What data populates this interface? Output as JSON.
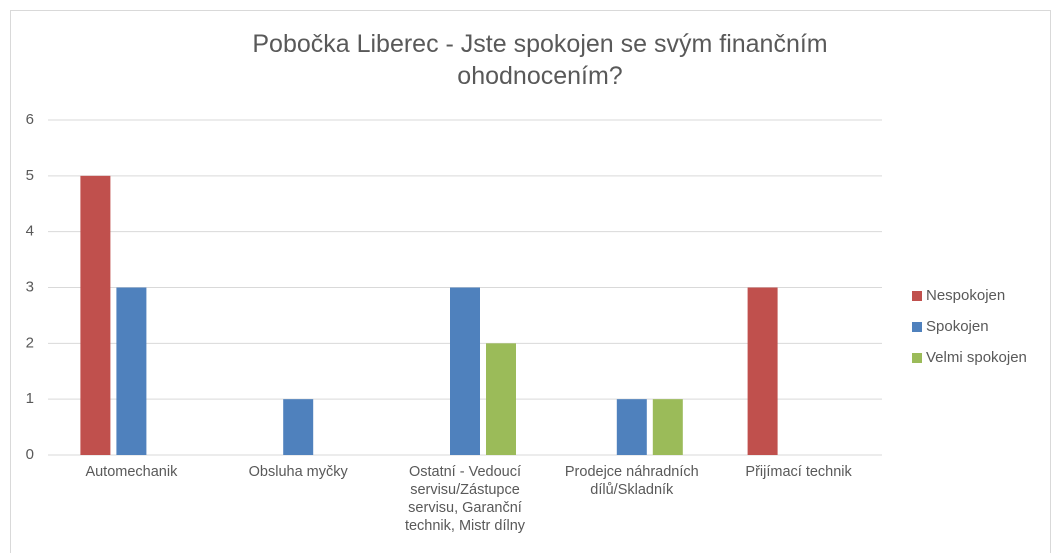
{
  "chart_data": {
    "type": "bar",
    "title": "Pobočka Liberec - Jste spokojen se svým finančním ohodnocením?",
    "categories": [
      "Automechanik",
      "Obsluha myčky",
      "Ostatní - Vedoucí servisu/Zástupce servisu, Garanční technik, Mistr dílny",
      "Prodejce náhradních dílů/Skladník",
      "Přijímací technik"
    ],
    "series": [
      {
        "name": "Nespokojen",
        "color": "#c0504d",
        "values": [
          5,
          0,
          0,
          0,
          3
        ]
      },
      {
        "name": "Spokojen",
        "color": "#4f81bd",
        "values": [
          3,
          1,
          3,
          1,
          0
        ]
      },
      {
        "name": "Velmi spokojen",
        "color": "#9bbb59",
        "values": [
          0,
          0,
          2,
          1,
          0
        ]
      }
    ],
    "ylim": [
      0,
      6
    ],
    "yticks": [
      0,
      1,
      2,
      3,
      4,
      5,
      6
    ],
    "grid": true,
    "legend": "right"
  }
}
